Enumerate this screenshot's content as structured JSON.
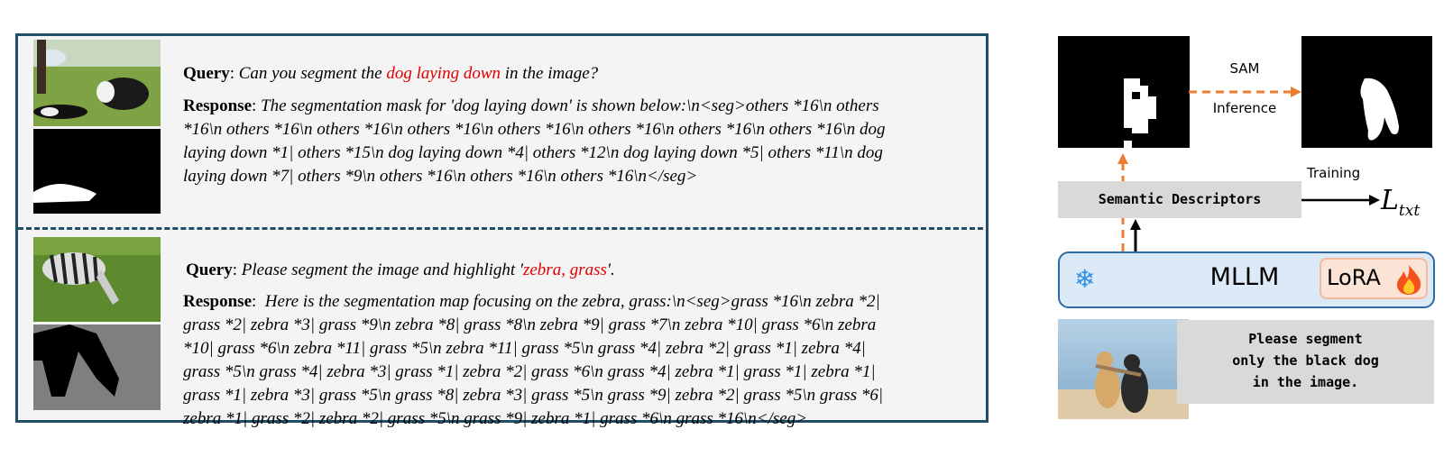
{
  "examples": [
    {
      "query_label": "Query",
      "query_prefix": "Can you segment the ",
      "query_highlight": "dog laying down",
      "query_suffix": " in the image?",
      "response_label": "Response",
      "response_lines": [
        "The segmentation mask for 'dog laying down' is shown below:\\n<seg>others *16\\n others",
        "*16\\n others *16\\n others *16\\n others *16\\n others *16\\n others *16\\n others *16\\n others *16\\n dog",
        "laying down *1| others *15\\n dog laying down *4| others *12\\n dog laying down *5| others *11\\n dog",
        "laying down *7| others *9\\n others *16\\n others *16\\n others *16\\n</seg>"
      ]
    },
    {
      "query_label": "Query",
      "query_prefix": "Please segment the image and highlight '",
      "query_highlight": "zebra, grass",
      "query_suffix": "'.",
      "response_label": "Response",
      "response_lines": [
        " Here is the segmentation map focusing on the zebra, grass:\\n<seg>grass *16\\n zebra *2|",
        "grass *2| zebra *3| grass *9\\n zebra *8| grass *8\\n zebra *9| grass *7\\n zebra *10| grass *6\\n zebra",
        "*10| grass *6\\n zebra *11| grass *5\\n zebra *11| grass *5\\n grass *4| zebra *2| grass *1| zebra *4|",
        "grass *5\\n grass *4| zebra *3| grass *1| zebra *2| grass *6\\n grass *4| zebra *1| grass *1| zebra *1|",
        "grass *1| zebra *3| grass *5\\n grass *8| zebra *3| grass *5\\n grass *9| zebra *2| grass *5\\n grass *6|",
        "zebra *1| grass *2| zebra *2| grass *5\\n grass *9| zebra *1| grass *6\\n grass *16\\n</seg>"
      ]
    }
  ],
  "pipeline": {
    "sam_label": "SAM",
    "inference_label": "Inference",
    "descriptors_label": "Semantic Descriptors",
    "training_label": "Training",
    "loss_symbol": "L",
    "loss_subscript": "txt",
    "mllm_label": "MLLM",
    "lora_label": "LoRA",
    "frozen_icon": "snowflake-icon",
    "trainable_icon": "fire-icon",
    "prompt_text": [
      "Please segment",
      "only the black dog",
      "in the image."
    ]
  },
  "colors": {
    "border": "#1f4e66",
    "highlight": "#e00000",
    "arrow_orange": "#ed7d31",
    "mllm_bg": "#dce9f6",
    "mllm_border": "#2e6aa8",
    "lora_bg": "#fbe3d6",
    "descriptor_bg": "#d9d9d9"
  }
}
